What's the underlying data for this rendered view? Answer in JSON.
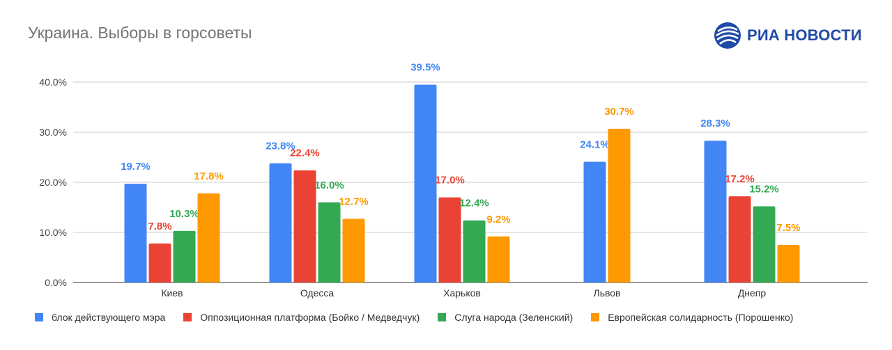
{
  "header": {
    "title": "Украина. Выборы в горсоветы",
    "logo_text": "РИА НОВОСТИ",
    "logo_icon": "ria-globe-icon",
    "logo_color": "#1f4aa8"
  },
  "chart_data": {
    "type": "bar",
    "title": "Украина. Выборы в горсоветы",
    "categories": [
      "Киев",
      "Одесса",
      "Харьков",
      "Львов",
      "Днепр"
    ],
    "series": [
      {
        "name": "блок действующего мэра",
        "color": "#4285f4",
        "values": [
          19.7,
          23.8,
          39.5,
          24.1,
          28.3
        ],
        "labels": [
          "19.7%",
          "23.8%",
          "39.5%",
          "24.1%",
          "28.3%"
        ]
      },
      {
        "name": "Оппозиционная платформа (Бойко / Медведчук)",
        "color": "#ea4335",
        "values": [
          7.8,
          22.4,
          17.0,
          null,
          17.2
        ],
        "labels": [
          "7.8%",
          "22.4%",
          "17.0%",
          "",
          "17.2%"
        ]
      },
      {
        "name": "Слуга народа (Зеленский)",
        "color": "#34a853",
        "values": [
          10.3,
          16.0,
          12.4,
          null,
          15.2
        ],
        "labels": [
          "10.3%",
          "16.0%",
          "12.4%",
          "",
          "15.2%"
        ]
      },
      {
        "name": "Европейская солидарность (Порошенко)",
        "color": "#ff9900",
        "values": [
          17.8,
          12.7,
          9.2,
          30.7,
          7.5
        ],
        "labels": [
          "17.8%",
          "12.7%",
          "9.2%",
          "30.7%",
          "7.5%"
        ]
      }
    ],
    "ylim": [
      0,
      40
    ],
    "yticks": [
      0,
      10,
      20,
      30,
      40
    ],
    "ytick_labels": [
      "0.0%",
      "10.0%",
      "20.0%",
      "30.0%",
      "40.0%"
    ],
    "grid": true,
    "legend_position": "bottom"
  }
}
